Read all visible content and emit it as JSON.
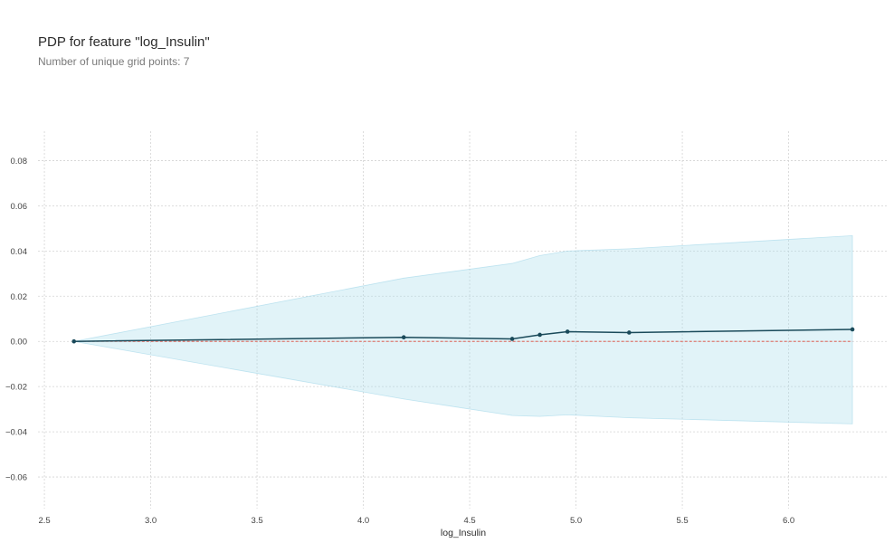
{
  "chart_data": {
    "type": "line",
    "title": "PDP for feature \"log_Insulin\"",
    "subtitle": "Number of unique grid points: 7",
    "xlabel": "log_Insulin",
    "ylabel": "",
    "xlim": [
      2.47,
      6.47
    ],
    "ylim": [
      -0.074,
      0.093
    ],
    "xticks": [
      2.5,
      3.0,
      3.5,
      4.0,
      4.5,
      5.0,
      5.5,
      6.0
    ],
    "xtick_labels": [
      "2.5",
      "3.0",
      "3.5",
      "4.0",
      "4.5",
      "5.0",
      "5.5",
      "6.0"
    ],
    "yticks": [
      -0.06,
      -0.04,
      -0.02,
      0.0,
      0.02,
      0.04,
      0.06,
      0.08
    ],
    "ytick_labels": [
      "−0.06",
      "−0.04",
      "−0.02",
      "0.00",
      "0.02",
      "0.04",
      "0.06",
      "0.08"
    ],
    "grid": true,
    "baseline": 0.0,
    "series": [
      {
        "x": [
          2.639,
          4.19,
          4.7,
          4.83,
          4.96,
          5.25,
          6.3
        ],
        "y": [
          0.0,
          0.0018,
          0.0011,
          0.0029,
          0.0043,
          0.0039,
          0.0053
        ],
        "upper": [
          0.0,
          0.028,
          0.0345,
          0.038,
          0.04,
          0.041,
          0.0468
        ],
        "lower": [
          0.0,
          -0.0255,
          -0.0328,
          -0.0332,
          -0.0325,
          -0.0338,
          -0.0365
        ]
      }
    ],
    "colors": {
      "line": "#1a4a5a",
      "band": "#a8dcec",
      "band_stroke": "#8fd0e6",
      "baseline": "#e04a3a",
      "grid": "#d3d3d3"
    }
  }
}
